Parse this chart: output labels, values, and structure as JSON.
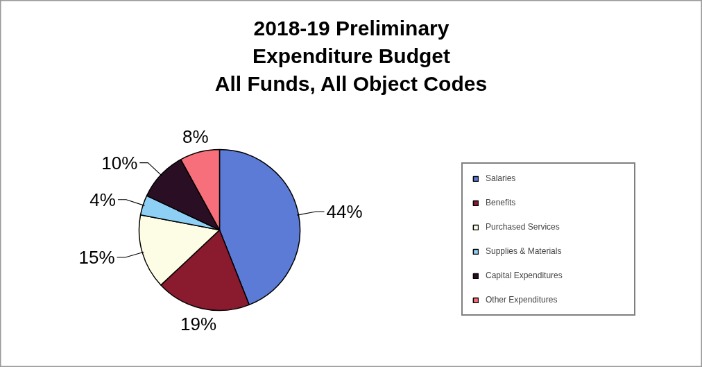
{
  "chart_data": {
    "type": "pie",
    "title": "2018-19 Preliminary\nExpenditure Budget\nAll Funds, All Object Codes",
    "categories": [
      "Salaries",
      "Benefits",
      "Purchased Services",
      "Supplies & Materials",
      "Capital Expenditures",
      "Other Expenditures"
    ],
    "values": [
      44,
      19,
      15,
      4,
      10,
      8
    ],
    "colors": [
      "#5b7bd6",
      "#8a1a2e",
      "#fdfde6",
      "#8ecff5",
      "#2a0f24",
      "#f76f7a"
    ],
    "value_labels": [
      "44%",
      "19%",
      "15%",
      "4%",
      "10%",
      "8%"
    ],
    "legend": "right"
  }
}
